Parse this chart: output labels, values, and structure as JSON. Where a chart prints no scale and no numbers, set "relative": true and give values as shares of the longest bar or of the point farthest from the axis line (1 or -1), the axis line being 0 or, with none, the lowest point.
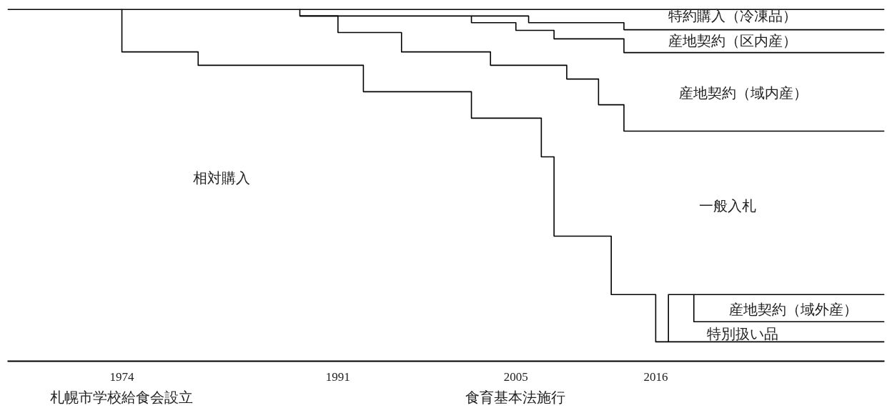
{
  "chart_data": {
    "type": "step",
    "relative": true,
    "xlim": [
      1965,
      2034
    ],
    "xticks": [
      1974,
      1991,
      2005,
      2016
    ],
    "series": [
      {
        "color": "#000000",
        "x": [
          1965,
          2034
        ],
        "values": [
          1,
          1
        ]
      },
      {
        "color": "#000000",
        "x": [
          1974,
          1974,
          1980,
          1993,
          2001.5,
          2007,
          2008,
          2012.5,
          2016,
          2034
        ],
        "values": [
          1,
          0.878,
          0.84,
          0.765,
          0.69,
          0.58,
          0.355,
          0.189,
          0.055,
          0.055
        ]
      },
      {
        "color": "#000000",
        "x": [
          1988,
          1988,
          1991,
          1996,
          2003,
          2009,
          2011.5,
          2013.5,
          2034
        ],
        "values": [
          1,
          0.98,
          0.933,
          0.878,
          0.84,
          0.801,
          0.728,
          0.653,
          0.653
        ]
      },
      {
        "color": "#000000",
        "x": [
          1988,
          2001.5,
          2005,
          2008,
          2013.5,
          2034
        ],
        "values": [
          0.98,
          0.961,
          0.939,
          0.915,
          0.876,
          0.876
        ]
      },
      {
        "color": "#000000",
        "x": [
          2001.5,
          2006,
          2013.5,
          2034
        ],
        "values": [
          0.98,
          0.961,
          0.941,
          0.941
        ]
      },
      {
        "color": "#000000",
        "x": [
          2017,
          2017,
          2034
        ],
        "values": [
          0.055,
          0.189,
          0.189
        ]
      },
      {
        "color": "#000000",
        "x": [
          2019,
          2019,
          2034
        ],
        "values": [
          0.189,
          0.112,
          0.112
        ]
      }
    ],
    "annotations": [
      "特約購入（冷凍品）",
      "産地契約（区内産）",
      "産地契約（域内産）",
      "相対購入",
      "一般入札",
      "産地契約（域外産）",
      "特別扱い品",
      "札幌市学校給食会設立",
      "食育基本法施行"
    ]
  }
}
